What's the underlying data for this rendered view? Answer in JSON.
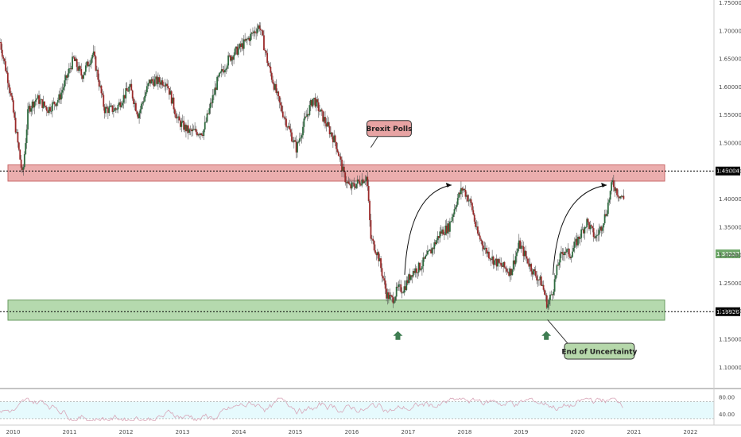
{
  "chart_data": {
    "type": "candlestick",
    "y_axis": {
      "ticks": [
        "1.75000",
        "1.70000",
        "1.65000",
        "1.60000",
        "1.55000",
        "1.50000",
        "1.45000",
        "1.40000",
        "1.35000",
        "1.30000",
        "1.25000",
        "1.20000",
        "1.15000",
        "1.10000"
      ],
      "tick_values": [
        1.75,
        1.7,
        1.65,
        1.6,
        1.55,
        1.5,
        1.45,
        1.4,
        1.35,
        1.3,
        1.25,
        1.2,
        1.15,
        1.1
      ],
      "range": [
        1.065,
        1.755
      ]
    },
    "x_axis": {
      "ticks": [
        "2010",
        "2011",
        "2012",
        "2013",
        "2014",
        "2015",
        "2016",
        "2017",
        "2018",
        "2019",
        "2020",
        "2021",
        "2022"
      ],
      "tick_values": [
        2010,
        2011,
        2012,
        2013,
        2014,
        2015,
        2016,
        2017,
        2018,
        2019,
        2020,
        2021,
        2022
      ],
      "range": [
        2009.95,
        2022.6
      ]
    },
    "price_path": [
      [
        2009.95,
        1.68
      ],
      [
        2010.12,
        1.6
      ],
      [
        2010.25,
        1.51
      ],
      [
        2010.35,
        1.44
      ],
      [
        2010.45,
        1.56
      ],
      [
        2010.6,
        1.58
      ],
      [
        2010.8,
        1.56
      ],
      [
        2011.0,
        1.58
      ],
      [
        2011.25,
        1.65
      ],
      [
        2011.4,
        1.62
      ],
      [
        2011.6,
        1.66
      ],
      [
        2011.8,
        1.56
      ],
      [
        2012.0,
        1.56
      ],
      [
        2012.25,
        1.6
      ],
      [
        2012.4,
        1.55
      ],
      [
        2012.6,
        1.61
      ],
      [
        2012.9,
        1.61
      ],
      [
        2013.1,
        1.54
      ],
      [
        2013.3,
        1.52
      ],
      [
        2013.55,
        1.52
      ],
      [
        2013.8,
        1.61
      ],
      [
        2014.0,
        1.65
      ],
      [
        2014.3,
        1.68
      ],
      [
        2014.55,
        1.71
      ],
      [
        2014.7,
        1.64
      ],
      [
        2014.9,
        1.57
      ],
      [
        2015.2,
        1.49
      ],
      [
        2015.35,
        1.54
      ],
      [
        2015.5,
        1.58
      ],
      [
        2015.7,
        1.54
      ],
      [
        2015.9,
        1.5
      ],
      [
        2016.05,
        1.44
      ],
      [
        2016.15,
        1.42
      ],
      [
        2016.3,
        1.43
      ],
      [
        2016.45,
        1.44
      ],
      [
        2016.52,
        1.33
      ],
      [
        2016.65,
        1.3
      ],
      [
        2016.8,
        1.23
      ],
      [
        2016.9,
        1.22
      ],
      [
        2017.0,
        1.24
      ],
      [
        2017.1,
        1.24
      ],
      [
        2017.25,
        1.27
      ],
      [
        2017.4,
        1.28
      ],
      [
        2017.6,
        1.31
      ],
      [
        2017.75,
        1.34
      ],
      [
        2017.9,
        1.35
      ],
      [
        2018.05,
        1.4
      ],
      [
        2018.15,
        1.42
      ],
      [
        2018.3,
        1.39
      ],
      [
        2018.4,
        1.34
      ],
      [
        2018.55,
        1.31
      ],
      [
        2018.7,
        1.29
      ],
      [
        2018.85,
        1.28
      ],
      [
        2019.0,
        1.27
      ],
      [
        2019.15,
        1.32
      ],
      [
        2019.25,
        1.3
      ],
      [
        2019.4,
        1.27
      ],
      [
        2019.55,
        1.25
      ],
      [
        2019.65,
        1.21
      ],
      [
        2019.75,
        1.24
      ],
      [
        2019.85,
        1.29
      ],
      [
        2019.95,
        1.31
      ],
      [
        2020.05,
        1.3
      ],
      [
        2020.2,
        1.33
      ],
      [
        2020.35,
        1.36
      ],
      [
        2020.5,
        1.33
      ],
      [
        2020.6,
        1.35
      ],
      [
        2020.7,
        1.38
      ],
      [
        2020.8,
        1.43
      ],
      [
        2020.9,
        1.41
      ],
      [
        2021.0,
        1.4
      ]
    ],
    "zones": [
      {
        "name": "resistance",
        "y_from": 1.432,
        "y_to": 1.461,
        "color": "#e8a0a0",
        "border": "#c05050"
      },
      {
        "name": "support",
        "y_from": 1.184,
        "y_to": 1.22,
        "color": "#a9d3a0",
        "border": "#4f8a45"
      }
    ],
    "price_lines": [
      {
        "value": "1.45004",
        "y": 1.45004,
        "bg": "#000000",
        "fg": "#ffffff"
      },
      {
        "value": "1.30237",
        "y": 1.30237,
        "bg": "#6fa86a",
        "fg": "#ffffff"
      },
      {
        "value": "1.19920",
        "y": 1.1992,
        "bg": "#000000",
        "fg": "#ffffff"
      }
    ],
    "annotations": [
      {
        "text": "Brexit Polls",
        "x": 2016.52,
        "y": 1.492,
        "box_x": 2016.45,
        "box_y": 1.54
      },
      {
        "text": "End of Uncertainty",
        "x": 2019.65,
        "y": 1.185,
        "box_x": 2019.95,
        "box_y": 1.143
      }
    ],
    "arrows_up": [
      {
        "x": 2017.0,
        "y": 1.156
      },
      {
        "x": 2019.63,
        "y": 1.156
      }
    ],
    "curved_arrows": [
      {
        "from": [
          2017.12,
          1.265
        ],
        "to": [
          2017.95,
          1.425
        ]
      },
      {
        "from": [
          2019.75,
          1.265
        ],
        "to": [
          2020.7,
          1.425
        ]
      }
    ],
    "rsi": {
      "ticks": [
        "80.00",
        "40.00"
      ],
      "tick_values": [
        80,
        40
      ],
      "range": [
        15,
        95
      ],
      "band": [
        30,
        70
      ]
    },
    "colors": {
      "up": "#2e6b3f",
      "down": "#9b2a2a",
      "wick": "#555555",
      "rsi_line": "#d8a6b8",
      "rsi_band": "#e6fafd"
    }
  }
}
